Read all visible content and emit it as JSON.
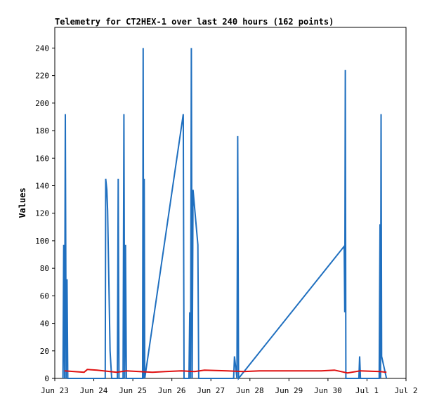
{
  "chart_data": {
    "type": "line",
    "title": "Telemetry for CT2HEX-1 over last 240 hours (162 points)",
    "xlabel": "",
    "ylabel": "Values",
    "xlim": [
      "2024-06-23",
      "2024-07-02"
    ],
    "ylim": [
      0,
      255
    ],
    "x_ticks": [
      "2024-06-23",
      "2024-06-24",
      "2024-06-25",
      "2024-06-26",
      "2024-06-27",
      "2024-06-28",
      "2024-06-29",
      "2024-06-30",
      "2024-07-01",
      "2024-07-02"
    ],
    "x_tick_labels": [
      "Jun 23",
      "Jun 24",
      "Jun 25",
      "Jun 26",
      "Jun 27",
      "Jun 28",
      "Jun 29",
      "Jun 30",
      "Jul 1",
      "Jul 2"
    ],
    "y_ticks": [
      0,
      20,
      40,
      60,
      80,
      100,
      120,
      140,
      160,
      180,
      200,
      220,
      240
    ],
    "grid": false,
    "series": [
      {
        "color": "#1f6fbf",
        "points": [
          [
            "2024-06-23 05:00",
            0
          ],
          [
            "2024-06-23 05:30",
            97
          ],
          [
            "2024-06-23 06:00",
            0
          ],
          [
            "2024-06-23 06:30",
            192
          ],
          [
            "2024-06-23 07:00",
            0
          ],
          [
            "2024-06-23 07:30",
            72
          ],
          [
            "2024-06-23 08:00",
            0
          ],
          [
            "2024-06-24 07:00",
            0
          ],
          [
            "2024-06-24 07:20",
            145
          ],
          [
            "2024-06-24 08:00",
            137
          ],
          [
            "2024-06-24 08:30",
            122
          ],
          [
            "2024-06-24 10:00",
            20
          ],
          [
            "2024-06-24 11:00",
            0
          ],
          [
            "2024-06-24 14:30",
            0
          ],
          [
            "2024-06-24 15:00",
            145
          ],
          [
            "2024-06-24 15:30",
            0
          ],
          [
            "2024-06-24 18:00",
            0
          ],
          [
            "2024-06-24 18:30",
            192
          ],
          [
            "2024-06-24 19:00",
            0
          ],
          [
            "2024-06-24 19:30",
            97
          ],
          [
            "2024-06-24 20:00",
            0
          ],
          [
            "2024-06-25 06:00",
            0
          ],
          [
            "2024-06-25 06:20",
            240
          ],
          [
            "2024-06-25 06:40",
            0
          ],
          [
            "2024-06-25 07:00",
            145
          ],
          [
            "2024-06-25 07:20",
            0
          ],
          [
            "2024-06-26 07:00",
            192
          ],
          [
            "2024-06-26 07:30",
            0
          ],
          [
            "2024-06-26 10:30",
            0
          ],
          [
            "2024-06-26 11:00",
            48
          ],
          [
            "2024-06-26 11:30",
            0
          ],
          [
            "2024-06-26 12:00",
            240
          ],
          [
            "2024-06-26 12:30",
            0
          ],
          [
            "2024-06-26 13:00",
            137
          ],
          [
            "2024-06-26 16:00",
            97
          ],
          [
            "2024-06-26 16:30",
            0
          ],
          [
            "2024-06-27 14:00",
            0
          ],
          [
            "2024-06-27 14:30",
            16
          ],
          [
            "2024-06-27 16:00",
            0
          ],
          [
            "2024-06-27 16:30",
            176
          ],
          [
            "2024-06-27 17:00",
            0
          ],
          [
            "2024-06-30 10:00",
            96
          ],
          [
            "2024-06-30 10:20",
            48
          ],
          [
            "2024-06-30 10:40",
            224
          ],
          [
            "2024-06-30 11:00",
            0
          ],
          [
            "2024-06-30 19:00",
            0
          ],
          [
            "2024-06-30 19:30",
            16
          ],
          [
            "2024-06-30 20:00",
            0
          ],
          [
            "2024-07-01 07:30",
            0
          ],
          [
            "2024-07-01 08:00",
            112
          ],
          [
            "2024-07-01 08:20",
            0
          ],
          [
            "2024-07-01 08:40",
            192
          ],
          [
            "2024-07-01 09:00",
            16
          ],
          [
            "2024-07-01 12:00",
            0
          ]
        ]
      },
      {
        "color": "#e01010",
        "points": [
          [
            "2024-06-23 06:00",
            5.5
          ],
          [
            "2024-06-23 12:00",
            5
          ],
          [
            "2024-06-23 18:00",
            4.5
          ],
          [
            "2024-06-23 20:00",
            6.5
          ],
          [
            "2024-06-24 02:00",
            6
          ],
          [
            "2024-06-24 10:00",
            5
          ],
          [
            "2024-06-24 14:00",
            4.5
          ],
          [
            "2024-06-24 20:00",
            5.5
          ],
          [
            "2024-06-25 04:00",
            5
          ],
          [
            "2024-06-25 12:00",
            4.5
          ],
          [
            "2024-06-25 20:00",
            5
          ],
          [
            "2024-06-26 06:00",
            5.5
          ],
          [
            "2024-06-26 14:00",
            5
          ],
          [
            "2024-06-26 20:00",
            6
          ],
          [
            "2024-06-27 10:00",
            5.5
          ],
          [
            "2024-06-27 20:00",
            5
          ],
          [
            "2024-06-28 06:00",
            5.5
          ],
          [
            "2024-06-28 18:00",
            5.5
          ],
          [
            "2024-06-29 20:00",
            5.5
          ],
          [
            "2024-06-30 04:00",
            6
          ],
          [
            "2024-06-30 12:00",
            4
          ],
          [
            "2024-06-30 20:00",
            5.5
          ],
          [
            "2024-07-01 08:00",
            5
          ],
          [
            "2024-07-01 12:00",
            4.5
          ]
        ]
      }
    ]
  }
}
